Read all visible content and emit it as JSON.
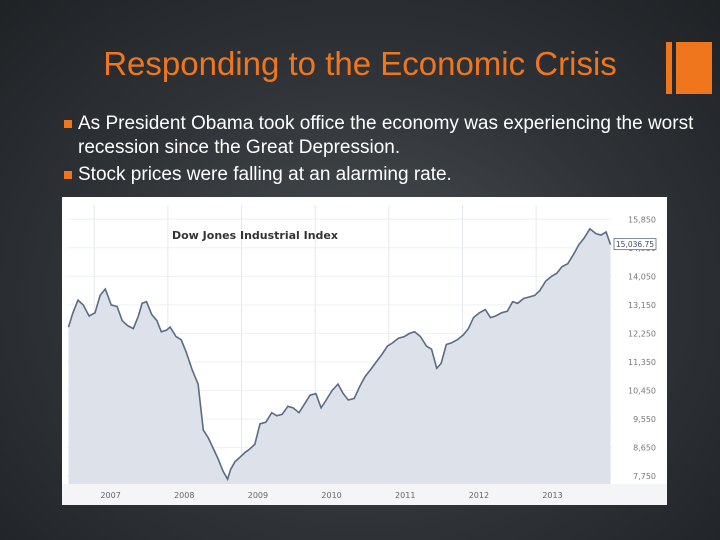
{
  "slide": {
    "title": "Responding to the Economic Crisis",
    "accent_color": "#f0761d",
    "bullets": [
      "As President Obama took office the economy was experiencing the worst recession since the Great Depression.",
      "Stock prices were falling at an alarming rate."
    ]
  },
  "chart_data": {
    "type": "area",
    "title": "Dow Jones Industrial Index",
    "xlabel": "",
    "ylabel": "",
    "x_tick_labels": [
      "2007",
      "2008",
      "2009",
      "2010",
      "2011",
      "2012",
      "2013"
    ],
    "x_tick_years": [
      2007,
      2008,
      2009,
      2010,
      2011,
      2012,
      2013
    ],
    "xlim": [
      2006.6,
      2014.0
    ],
    "y_ticks": [
      7750,
      8650,
      9550,
      10450,
      11350,
      12250,
      13150,
      14050,
      14950,
      15850
    ],
    "y_tick_labels": [
      "7,750",
      "8,650",
      "9,550",
      "10,450",
      "11,350",
      "12,250",
      "13,150",
      "14,050",
      "14,950",
      "15,850"
    ],
    "ylim": [
      7500,
      16300
    ],
    "last_value_label": "15,036.75",
    "series": [
      {
        "name": "",
        "color": "#5b6b84",
        "fill": "#dde2ea",
        "x": [
          2006.62,
          2006.68,
          2006.75,
          2006.82,
          2006.9,
          2006.98,
          2007.05,
          2007.12,
          2007.2,
          2007.28,
          2007.35,
          2007.42,
          2007.5,
          2007.57,
          2007.62,
          2007.68,
          2007.75,
          2007.82,
          2007.88,
          2007.95,
          2008.0,
          2008.08,
          2008.15,
          2008.22,
          2008.3,
          2008.38,
          2008.45,
          2008.52,
          2008.58,
          2008.65,
          2008.72,
          2008.78,
          2008.82,
          2008.88,
          2008.95,
          2009.02,
          2009.08,
          2009.15,
          2009.22,
          2009.3,
          2009.38,
          2009.45,
          2009.52,
          2009.6,
          2009.67,
          2009.75,
          2009.82,
          2009.9,
          2009.98,
          2010.05,
          2010.12,
          2010.2,
          2010.28,
          2010.35,
          2010.42,
          2010.5,
          2010.58,
          2010.65,
          2010.72,
          2010.8,
          2010.88,
          2010.95,
          2011.02,
          2011.1,
          2011.18,
          2011.25,
          2011.32,
          2011.4,
          2011.48,
          2011.55,
          2011.62,
          2011.68,
          2011.75,
          2011.82,
          2011.9,
          2011.98,
          2012.05,
          2012.12,
          2012.2,
          2012.28,
          2012.35,
          2012.42,
          2012.5,
          2012.58,
          2012.65,
          2012.72,
          2012.8,
          2012.88,
          2012.95,
          2013.02,
          2013.1,
          2013.18,
          2013.25,
          2013.32,
          2013.4,
          2013.48,
          2013.55,
          2013.62,
          2013.7,
          2013.78,
          2013.85,
          2013.92,
          2013.98
        ],
        "y": [
          12450,
          12900,
          13300,
          13150,
          12800,
          12900,
          13450,
          13650,
          13150,
          13100,
          12650,
          12500,
          12400,
          12800,
          13200,
          13250,
          12850,
          12650,
          12300,
          12350,
          12450,
          12150,
          12050,
          11650,
          11100,
          10650,
          9200,
          8950,
          8650,
          8300,
          7900,
          7650,
          7950,
          8200,
          8350,
          8500,
          8600,
          8750,
          9400,
          9450,
          9750,
          9650,
          9700,
          9950,
          9900,
          9750,
          10000,
          10300,
          10350,
          9900,
          10150,
          10450,
          10650,
          10350,
          10150,
          10200,
          10600,
          10900,
          11100,
          11350,
          11600,
          11850,
          11950,
          12100,
          12150,
          12250,
          12300,
          12150,
          11850,
          11750,
          11150,
          11300,
          11900,
          11950,
          12050,
          12200,
          12400,
          12750,
          12900,
          13000,
          12750,
          12800,
          12900,
          12950,
          13250,
          13200,
          13350,
          13400,
          13450,
          13600,
          13900,
          14050,
          14150,
          14350,
          14450,
          14750,
          15050,
          15250,
          15550,
          15400,
          15350,
          15450,
          15050
        ]
      }
    ],
    "grid": true,
    "legend": "none"
  }
}
